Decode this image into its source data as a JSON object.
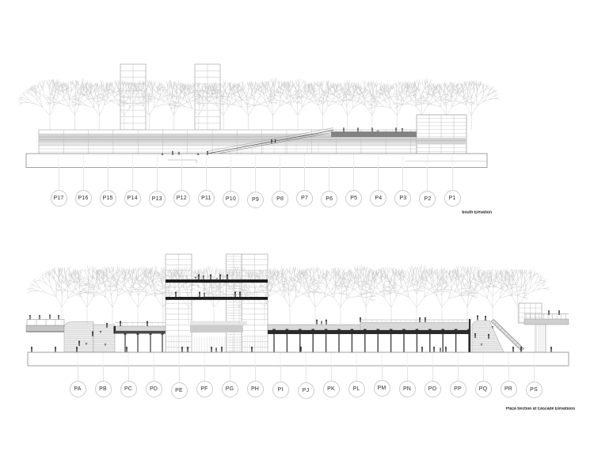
{
  "sheet": {
    "background": "#ffffff"
  },
  "colors": {
    "tree": "#c9c9c9",
    "line_light": "#bcbcbc",
    "line_mid": "#9a9a9a",
    "outline": "#8a8a8a",
    "gray_band": "#d4d4d4",
    "gray_band_light": "#e4e4e4",
    "deck_gray": "#d8d8d8",
    "deck_dark": "#828282",
    "slab_black": "#1c1c1c",
    "under_deck_black": "#2b2b2b",
    "berm_fill": "#ebebeb",
    "hatch": "#c2c2c2",
    "figure": "#1f1f1f",
    "bubble_stroke": "#cccccc",
    "bubble_text": "#2e2e2e",
    "leader": "#e4e4e4",
    "gridline_faint": "#e0e0e0"
  },
  "top_drawing": {
    "caption": "South Elevation",
    "grid_bubbles": [
      "P17",
      "P16",
      "P15",
      "P14",
      "P13",
      "P12",
      "P11",
      "P10",
      "P9",
      "P8",
      "P7",
      "P6",
      "P5",
      "P4",
      "P3",
      "P2",
      "P1"
    ]
  },
  "bottom_drawing": {
    "caption": "Plaza Section at Cascade Elevations",
    "grid_bubbles": [
      "PA",
      "PB",
      "PC",
      "PD",
      "PE",
      "PF",
      "PG",
      "PH",
      "PI",
      "PJ",
      "PK",
      "PL",
      "PM",
      "PN",
      "PO",
      "PP",
      "PQ",
      "PR",
      "PS"
    ]
  }
}
